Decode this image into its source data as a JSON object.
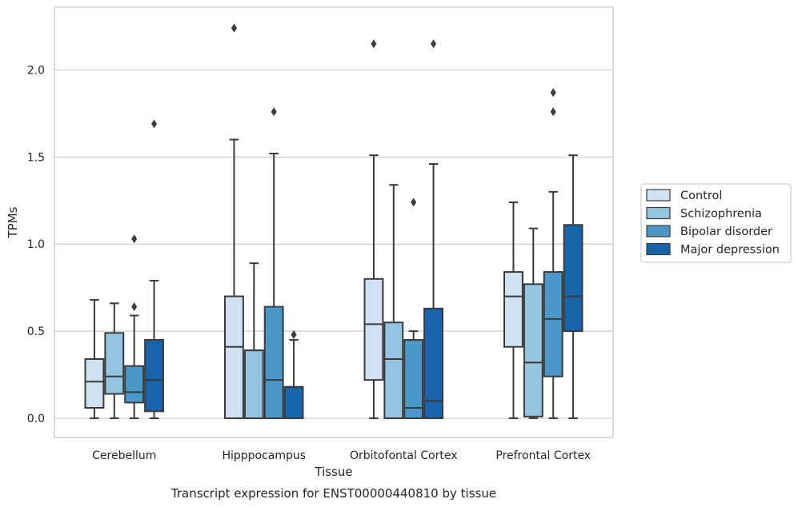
{
  "chart_data": {
    "type": "box",
    "title": "Transcript expression for ENST00000440810 by tissue",
    "xlabel": "Tissue",
    "ylabel": "TPMs",
    "ylim": [
      -0.11,
      2.36
    ],
    "yticks": [
      0.0,
      0.5,
      1.0,
      1.5,
      2.0
    ],
    "ytick_labels": [
      "0.0",
      "0.5",
      "1.0",
      "1.5",
      "2.0"
    ],
    "grid": "horizontal",
    "legend_position": "right",
    "categories": [
      "Cerebellum",
      "Hipppocampus",
      "Orbitofontal Cortex",
      "Prefrontal Cortex"
    ],
    "series": [
      {
        "name": "Control",
        "color": "#d0e1f2",
        "boxes": [
          {
            "min": 0.0,
            "q1": 0.06,
            "median": 0.21,
            "q3": 0.34,
            "max": 0.68,
            "outliers": []
          },
          {
            "min": 0.0,
            "q1": 0.0,
            "median": 0.41,
            "q3": 0.7,
            "max": 1.6,
            "outliers": [
              2.24
            ]
          },
          {
            "min": 0.0,
            "q1": 0.22,
            "median": 0.54,
            "q3": 0.8,
            "max": 1.51,
            "outliers": [
              2.15
            ]
          },
          {
            "min": 0.0,
            "q1": 0.41,
            "median": 0.7,
            "q3": 0.84,
            "max": 1.24,
            "outliers": []
          }
        ]
      },
      {
        "name": "Schizophrenia",
        "color": "#94c4df",
        "boxes": [
          {
            "min": 0.0,
            "q1": 0.14,
            "median": 0.24,
            "q3": 0.49,
            "max": 0.66,
            "outliers": []
          },
          {
            "min": 0.0,
            "q1": 0.0,
            "median": 0.39,
            "q3": 0.39,
            "max": 0.89,
            "outliers": []
          },
          {
            "min": 0.0,
            "q1": 0.0,
            "median": 0.34,
            "q3": 0.55,
            "max": 1.34,
            "outliers": []
          },
          {
            "min": 0.0,
            "q1": 0.01,
            "median": 0.32,
            "q3": 0.77,
            "max": 1.09,
            "outliers": []
          }
        ]
      },
      {
        "name": "Bipolar disorder",
        "color": "#4a98c9",
        "boxes": [
          {
            "min": 0.0,
            "q1": 0.09,
            "median": 0.15,
            "q3": 0.3,
            "max": 0.59,
            "outliers": [
              0.64,
              1.03
            ]
          },
          {
            "min": 0.0,
            "q1": 0.0,
            "median": 0.22,
            "q3": 0.64,
            "max": 1.52,
            "outliers": [
              1.76
            ]
          },
          {
            "min": 0.0,
            "q1": 0.0,
            "median": 0.06,
            "q3": 0.45,
            "max": 0.5,
            "outliers": [
              1.24
            ]
          },
          {
            "min": 0.0,
            "q1": 0.24,
            "median": 0.57,
            "q3": 0.84,
            "max": 1.3,
            "outliers": [
              1.76,
              1.87
            ]
          }
        ]
      },
      {
        "name": "Major depression",
        "color": "#1764ab",
        "boxes": [
          {
            "min": 0.0,
            "q1": 0.04,
            "median": 0.22,
            "q3": 0.45,
            "max": 0.79,
            "outliers": [
              1.69
            ]
          },
          {
            "min": 0.0,
            "q1": 0.0,
            "median": 0.18,
            "q3": 0.18,
            "max": 0.45,
            "outliers": [
              0.48
            ]
          },
          {
            "min": 0.0,
            "q1": 0.0,
            "median": 0.1,
            "q3": 0.63,
            "max": 1.46,
            "outliers": [
              2.15
            ]
          },
          {
            "min": 0.0,
            "q1": 0.5,
            "median": 0.7,
            "q3": 1.11,
            "max": 1.51,
            "outliers": []
          }
        ]
      }
    ]
  }
}
